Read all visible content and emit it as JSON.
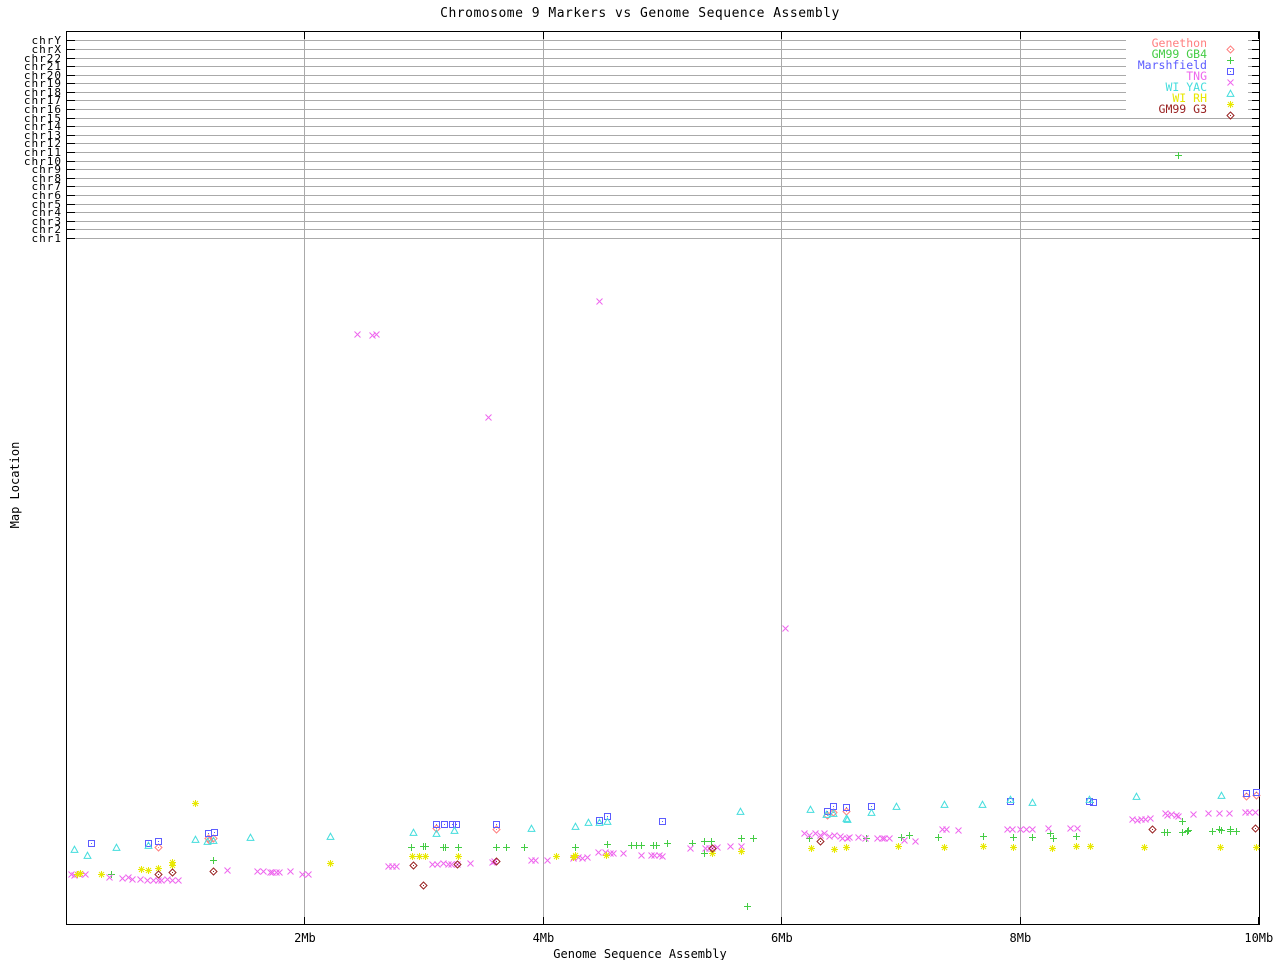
{
  "title": "Chromosome 9 Markers vs Genome Sequence Assembly",
  "x_axis": {
    "label": "Genome Sequence Assembly",
    "ticks": [
      {
        "value": 2,
        "label": "2Mb"
      },
      {
        "value": 4,
        "label": "4Mb"
      },
      {
        "value": 6,
        "label": "6Mb"
      },
      {
        "value": 8,
        "label": "8Mb"
      },
      {
        "value": 10,
        "label": "10Mb"
      }
    ],
    "range": [
      0,
      10.01
    ],
    "grid_at": [
      2,
      4,
      6,
      8
    ]
  },
  "y_axis": {
    "label": "Map Location",
    "tick_labels_top_to_bottom": [
      "chrY",
      "chrX",
      "chr22",
      "chr21",
      "chr20",
      "chr19",
      "chr18",
      "chr17",
      "chr16",
      "chr15",
      "chr14",
      "chr13",
      "chr12",
      "chr11",
      "chr10",
      "chr9",
      "chr8",
      "chr7",
      "chr6",
      "chr5",
      "chr4",
      "chr3",
      "chr2",
      "chr1"
    ],
    "top_tick_frac": 0.989,
    "bottom_tick_frac": 0.768
  },
  "legend": {
    "position": "top-right",
    "background": "#ffffff"
  },
  "colors": {
    "grid": "#aaaaaa",
    "axis": "#000000"
  },
  "chart_data": {
    "type": "scatter",
    "title": "Chromosome 9 Markers vs Genome Sequence Assembly",
    "xlabel": "Genome Sequence Assembly",
    "ylabel": "Map Location",
    "x_unit": "Mb",
    "y_unit": "fraction of plot height above bottom axis (0=bottom, 1=top); y axis ticks are chromosome boundaries",
    "xlim": [
      0,
      10.01
    ],
    "grid": true,
    "legend_position": "top-right",
    "series": [
      {
        "name": "Genethon",
        "color": "#ff7f7f",
        "marker": "diamond-dot",
        "points": [
          [
            0.77,
            0.093
          ],
          [
            1.19,
            0.104
          ],
          [
            1.23,
            0.104
          ],
          [
            1.2,
            0.101
          ],
          [
            3.1,
            0.115
          ],
          [
            3.61,
            0.114
          ],
          [
            6.38,
            0.129
          ],
          [
            6.43,
            0.133
          ],
          [
            6.54,
            0.134
          ],
          [
            9.9,
            0.151
          ],
          [
            9.98,
            0.152
          ]
        ]
      },
      {
        "name": "GM99 GB4",
        "color": "#44cc44",
        "marker": "plus",
        "points": [
          [
            0.38,
            0.063
          ],
          [
            1.23,
            0.079
          ],
          [
            2.89,
            0.093
          ],
          [
            2.99,
            0.094
          ],
          [
            3.01,
            0.094
          ],
          [
            3.16,
            0.093
          ],
          [
            3.18,
            0.093
          ],
          [
            3.29,
            0.093
          ],
          [
            3.61,
            0.093
          ],
          [
            3.69,
            0.093
          ],
          [
            3.84,
            0.093
          ],
          [
            4.27,
            0.093
          ],
          [
            4.54,
            0.097
          ],
          [
            4.74,
            0.096
          ],
          [
            4.78,
            0.096
          ],
          [
            4.82,
            0.096
          ],
          [
            4.92,
            0.096
          ],
          [
            4.95,
            0.096
          ],
          [
            5.04,
            0.098
          ],
          [
            5.25,
            0.098
          ],
          [
            5.35,
            0.1
          ],
          [
            5.41,
            0.1
          ],
          [
            5.35,
            0.087
          ],
          [
            5.66,
            0.103
          ],
          [
            5.76,
            0.103
          ],
          [
            5.71,
            0.027
          ],
          [
            6.23,
            0.103
          ],
          [
            6.71,
            0.103
          ],
          [
            7.0,
            0.105
          ],
          [
            7.07,
            0.107
          ],
          [
            7.31,
            0.105
          ],
          [
            7.69,
            0.106
          ],
          [
            7.94,
            0.105
          ],
          [
            8.1,
            0.105
          ],
          [
            8.25,
            0.109
          ],
          [
            8.28,
            0.104
          ],
          [
            8.47,
            0.106
          ],
          [
            9.36,
            0.122
          ],
          [
            9.21,
            0.11
          ],
          [
            9.23,
            0.11
          ],
          [
            9.36,
            0.11
          ],
          [
            9.4,
            0.111
          ],
          [
            9.41,
            0.112
          ],
          [
            9.61,
            0.111
          ],
          [
            9.67,
            0.113
          ],
          [
            9.69,
            0.112
          ],
          [
            9.76,
            0.114
          ],
          [
            9.76,
            0.111
          ],
          [
            9.81,
            0.111
          ],
          [
            9.33,
            0.868
          ]
        ]
      },
      {
        "name": "Marshfield",
        "color": "#5c5cff",
        "marker": "square-dot",
        "points": [
          [
            0.21,
            0.098
          ],
          [
            0.69,
            0.098
          ],
          [
            0.77,
            0.1
          ],
          [
            1.19,
            0.109
          ],
          [
            1.24,
            0.11
          ],
          [
            3.1,
            0.119
          ],
          [
            3.17,
            0.119
          ],
          [
            3.24,
            0.119
          ],
          [
            3.27,
            0.119
          ],
          [
            3.61,
            0.119
          ],
          [
            4.47,
            0.124
          ],
          [
            4.54,
            0.128
          ],
          [
            5.0,
            0.123
          ],
          [
            6.38,
            0.134
          ],
          [
            6.43,
            0.139
          ],
          [
            6.54,
            0.138
          ],
          [
            6.75,
            0.139
          ],
          [
            7.92,
            0.145
          ],
          [
            8.58,
            0.145
          ],
          [
            8.61,
            0.144
          ],
          [
            9.9,
            0.154
          ],
          [
            9.98,
            0.155
          ]
        ]
      },
      {
        "name": "TNG",
        "color": "#ee66ee",
        "marker": "cross",
        "points": [
          [
            0.04,
            0.063
          ],
          [
            0.07,
            0.062
          ],
          [
            0.11,
            0.063
          ],
          [
            0.16,
            0.063
          ],
          [
            0.36,
            0.06
          ],
          [
            0.47,
            0.059
          ],
          [
            0.52,
            0.06
          ],
          [
            0.55,
            0.058
          ],
          [
            0.62,
            0.058
          ],
          [
            0.68,
            0.057
          ],
          [
            0.73,
            0.057
          ],
          [
            0.77,
            0.056
          ],
          [
            0.8,
            0.057
          ],
          [
            0.85,
            0.058
          ],
          [
            0.89,
            0.057
          ],
          [
            0.94,
            0.056
          ],
          [
            1.35,
            0.068
          ],
          [
            1.6,
            0.066
          ],
          [
            1.65,
            0.066
          ],
          [
            1.71,
            0.065
          ],
          [
            1.73,
            0.065
          ],
          [
            1.76,
            0.065
          ],
          [
            1.79,
            0.065
          ],
          [
            1.88,
            0.066
          ],
          [
            1.98,
            0.063
          ],
          [
            2.03,
            0.063
          ],
          [
            2.7,
            0.072
          ],
          [
            2.73,
            0.072
          ],
          [
            2.77,
            0.072
          ],
          [
            3.07,
            0.074
          ],
          [
            3.11,
            0.074
          ],
          [
            3.16,
            0.075
          ],
          [
            3.2,
            0.074
          ],
          [
            3.23,
            0.074
          ],
          [
            3.28,
            0.074
          ],
          [
            3.39,
            0.076
          ],
          [
            3.57,
            0.077
          ],
          [
            3.59,
            0.078
          ],
          [
            3.9,
            0.079
          ],
          [
            3.93,
            0.079
          ],
          [
            4.03,
            0.079
          ],
          [
            4.25,
            0.081
          ],
          [
            4.29,
            0.082
          ],
          [
            4.33,
            0.081
          ],
          [
            4.37,
            0.082
          ],
          [
            4.46,
            0.088
          ],
          [
            4.52,
            0.088
          ],
          [
            4.56,
            0.087
          ],
          [
            4.59,
            0.087
          ],
          [
            4.67,
            0.087
          ],
          [
            4.82,
            0.085
          ],
          [
            4.91,
            0.084
          ],
          [
            4.93,
            0.085
          ],
          [
            4.97,
            0.084
          ],
          [
            5.0,
            0.083
          ],
          [
            5.23,
            0.092
          ],
          [
            5.36,
            0.092
          ],
          [
            5.39,
            0.092
          ],
          [
            5.42,
            0.092
          ],
          [
            5.46,
            0.093
          ],
          [
            5.57,
            0.094
          ],
          [
            5.66,
            0.094
          ],
          [
            6.19,
            0.109
          ],
          [
            6.23,
            0.107
          ],
          [
            6.28,
            0.109
          ],
          [
            6.32,
            0.107
          ],
          [
            6.36,
            0.109
          ],
          [
            6.4,
            0.106
          ],
          [
            6.44,
            0.107
          ],
          [
            6.49,
            0.106
          ],
          [
            6.51,
            0.104
          ],
          [
            6.55,
            0.104
          ],
          [
            6.57,
            0.105
          ],
          [
            6.64,
            0.105
          ],
          [
            6.7,
            0.104
          ],
          [
            6.8,
            0.104
          ],
          [
            6.84,
            0.104
          ],
          [
            6.86,
            0.103
          ],
          [
            6.9,
            0.103
          ],
          [
            7.03,
            0.101
          ],
          [
            7.12,
            0.1
          ],
          [
            7.35,
            0.114
          ],
          [
            7.38,
            0.113
          ],
          [
            7.48,
            0.112
          ],
          [
            7.89,
            0.114
          ],
          [
            7.93,
            0.114
          ],
          [
            8.0,
            0.114
          ],
          [
            8.05,
            0.114
          ],
          [
            8.1,
            0.114
          ],
          [
            8.24,
            0.115
          ],
          [
            8.42,
            0.115
          ],
          [
            8.48,
            0.115
          ],
          [
            8.94,
            0.125
          ],
          [
            8.98,
            0.124
          ],
          [
            9.02,
            0.125
          ],
          [
            9.05,
            0.125
          ],
          [
            9.09,
            0.126
          ],
          [
            9.22,
            0.131
          ],
          [
            9.23,
            0.129
          ],
          [
            9.27,
            0.13
          ],
          [
            9.31,
            0.129
          ],
          [
            9.33,
            0.128
          ],
          [
            9.45,
            0.13
          ],
          [
            9.58,
            0.131
          ],
          [
            9.67,
            0.131
          ],
          [
            9.75,
            0.131
          ],
          [
            9.89,
            0.132
          ],
          [
            9.92,
            0.132
          ],
          [
            9.97,
            0.133
          ],
          [
            2.44,
            0.667
          ],
          [
            2.57,
            0.666
          ],
          [
            2.6,
            0.667
          ],
          [
            3.54,
            0.574
          ],
          [
            4.47,
            0.704
          ],
          [
            6.03,
            0.338
          ]
        ]
      },
      {
        "name": "WI YAC",
        "color": "#44dddd",
        "marker": "triangle-open",
        "points": [
          [
            0.07,
            0.091
          ],
          [
            0.18,
            0.085
          ],
          [
            0.42,
            0.093
          ],
          [
            0.69,
            0.096
          ],
          [
            1.08,
            0.102
          ],
          [
            1.18,
            0.1
          ],
          [
            1.23,
            0.101
          ],
          [
            1.54,
            0.105
          ],
          [
            2.21,
            0.106
          ],
          [
            2.91,
            0.11
          ],
          [
            3.1,
            0.109
          ],
          [
            3.25,
            0.112
          ],
          [
            3.9,
            0.115
          ],
          [
            4.27,
            0.117
          ],
          [
            4.38,
            0.121
          ],
          [
            4.47,
            0.121
          ],
          [
            4.54,
            0.122
          ],
          [
            5.65,
            0.134
          ],
          [
            6.24,
            0.136
          ],
          [
            6.37,
            0.13
          ],
          [
            6.43,
            0.131
          ],
          [
            6.55,
            0.125
          ],
          [
            6.54,
            0.126
          ],
          [
            6.75,
            0.132
          ],
          [
            6.96,
            0.139
          ],
          [
            7.36,
            0.142
          ],
          [
            7.68,
            0.141
          ],
          [
            7.92,
            0.147
          ],
          [
            8.1,
            0.144
          ],
          [
            8.58,
            0.147
          ],
          [
            8.97,
            0.15
          ],
          [
            9.69,
            0.152
          ]
        ]
      },
      {
        "name": "WI RH",
        "color": "#e8e800",
        "marker": "asterisk",
        "points": [
          [
            1.08,
            0.143
          ],
          [
            0.09,
            0.063
          ],
          [
            0.12,
            0.064
          ],
          [
            0.29,
            0.063
          ],
          [
            0.63,
            0.069
          ],
          [
            0.69,
            0.068
          ],
          [
            0.77,
            0.07
          ],
          [
            0.89,
            0.073
          ],
          [
            0.89,
            0.077
          ],
          [
            2.21,
            0.076
          ],
          [
            2.9,
            0.083
          ],
          [
            2.96,
            0.083
          ],
          [
            3.01,
            0.083
          ],
          [
            3.29,
            0.083
          ],
          [
            4.11,
            0.083
          ],
          [
            4.25,
            0.082
          ],
          [
            4.27,
            0.084
          ],
          [
            4.53,
            0.084
          ],
          [
            5.42,
            0.087
          ],
          [
            5.66,
            0.089
          ],
          [
            6.25,
            0.092
          ],
          [
            6.44,
            0.091
          ],
          [
            6.54,
            0.093
          ],
          [
            6.98,
            0.095
          ],
          [
            7.36,
            0.093
          ],
          [
            7.69,
            0.094
          ],
          [
            7.94,
            0.093
          ],
          [
            8.27,
            0.092
          ],
          [
            8.47,
            0.094
          ],
          [
            8.59,
            0.094
          ],
          [
            9.04,
            0.093
          ],
          [
            9.68,
            0.093
          ],
          [
            9.98,
            0.093
          ]
        ]
      },
      {
        "name": "GM99 G3",
        "color": "#992222",
        "marker": "diamond-dot",
        "points": [
          [
            0.77,
            0.063
          ],
          [
            0.89,
            0.065
          ],
          [
            1.23,
            0.067
          ],
          [
            2.91,
            0.073
          ],
          [
            3.28,
            0.074
          ],
          [
            3.61,
            0.078
          ],
          [
            2.99,
            0.051
          ],
          [
            5.42,
            0.092
          ],
          [
            6.32,
            0.1
          ],
          [
            9.11,
            0.113
          ],
          [
            9.97,
            0.115
          ]
        ]
      }
    ]
  }
}
